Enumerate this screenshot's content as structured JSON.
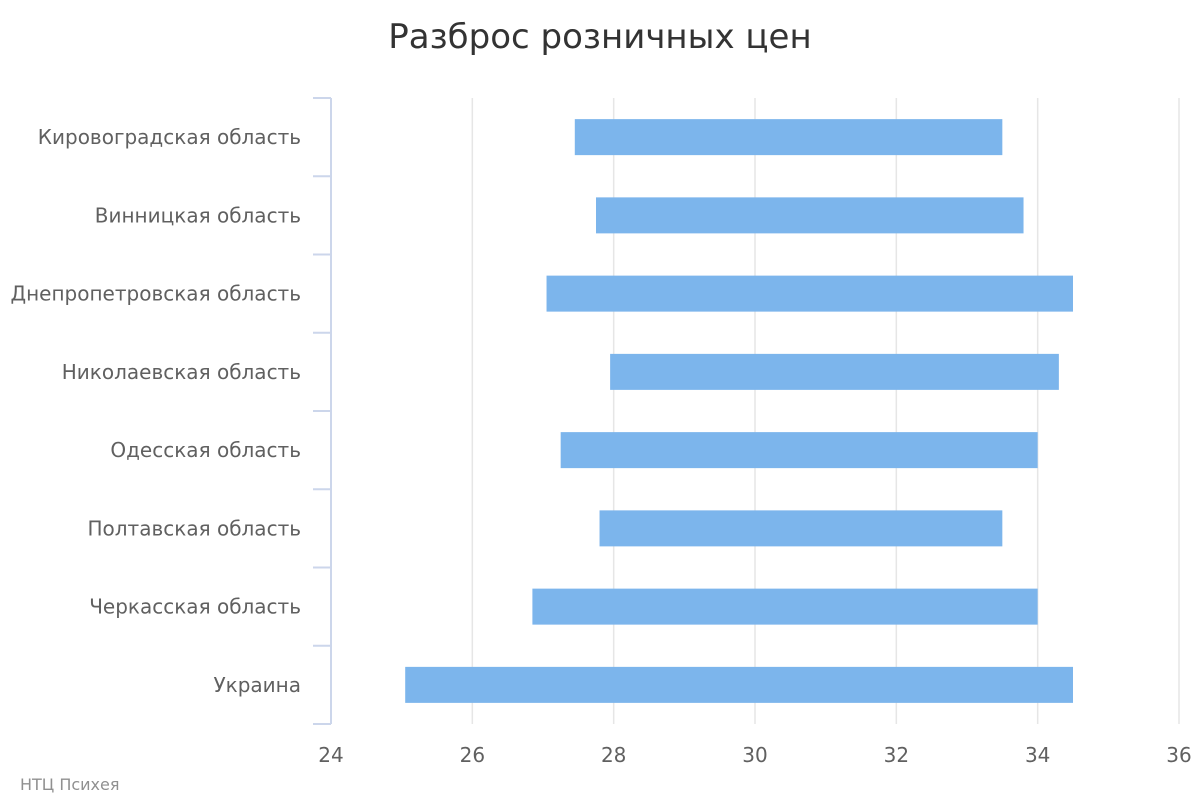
{
  "chart_data": {
    "type": "columnrange-horizontal",
    "title": "Разброс розничных цен",
    "credits": "НТЦ Психея",
    "xlabel": "",
    "ylabel": "",
    "categories": [
      "Кировоградская область",
      "Винницкая область",
      "Днепропетровская область",
      "Николаевская область",
      "Одесская область",
      "Полтавская область",
      "Черкасская область",
      "Украина"
    ],
    "series": [
      {
        "ranges": [
          [
            27.45,
            33.5
          ],
          [
            27.75,
            33.8
          ],
          [
            27.05,
            34.5
          ],
          [
            27.95,
            34.3
          ],
          [
            27.25,
            34.0
          ],
          [
            27.8,
            33.5
          ],
          [
            26.85,
            34.0
          ],
          [
            25.05,
            34.5
          ]
        ],
        "color": "#7cb5ec"
      }
    ],
    "value_axis": {
      "min": 24,
      "max": 36,
      "ticks": [
        24,
        26,
        28,
        30,
        32,
        34,
        36
      ]
    },
    "grid": true,
    "legend": "none"
  },
  "colors": {
    "bar": "#7cb5ec",
    "grid": "#e6e6e6",
    "axis": "#ccd6eb",
    "title": "#333333",
    "label": "#606060",
    "credits": "#909090"
  }
}
